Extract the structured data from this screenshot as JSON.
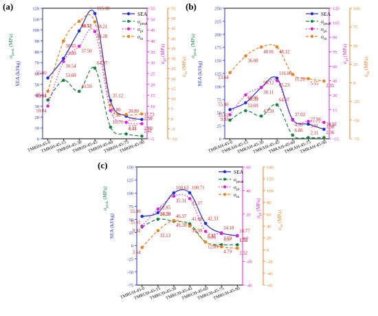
{
  "figure": {
    "panel_labels": [
      "(a)",
      "(b)",
      "(c)"
    ]
  },
  "legend": {
    "sea": "SEA",
    "peak": "σ",
    "peak_sub": "peak",
    "pl": "σ",
    "pl_sub": "pl",
    "m": "σ",
    "m_sub": "m"
  },
  "colors": {
    "sea": "#1f2bd6",
    "peak": "#12803a",
    "pl": "#e11be0",
    "m": "#f07f1b",
    "value_label": "#d41c1c",
    "frame": "#000000"
  },
  "chart_data": [
    {
      "type": "line",
      "panel": "(a)",
      "categories": [
        "TMRIH-45-0",
        "TMRIH-45-15",
        "TMRIH-45-30",
        "TMRIH-45-45",
        "TMRIH-45-60",
        "TMRIH-45-75",
        "TMRIH-45-90"
      ],
      "category_label_style": "diagonal",
      "axes": {
        "sea": {
          "label": "SEA (kJ/kg)",
          "ylim": [
            0,
            120
          ],
          "ticks": [
            0,
            10,
            20,
            30,
            40,
            50,
            60,
            70,
            80,
            90,
            100,
            110,
            120
          ]
        },
        "peak": {
          "label": "σ",
          "sub": "peak",
          "unit": "(MPa)",
          "ylim": [
            0,
            120
          ],
          "ticks": []
        },
        "pl": {
          "label": "σ",
          "sub": "pl",
          "unit": "(MPa)",
          "ylim": [
            -5,
            55
          ],
          "ticks": [
            -5,
            0,
            5,
            10,
            15,
            20,
            25,
            30,
            35,
            40,
            45,
            50,
            55
          ]
        },
        "m": {
          "label": "σ",
          "sub": "m",
          "unit": "(MPa)",
          "ylim": [
            -10,
            55
          ],
          "ticks": [
            -10,
            -5,
            0,
            5,
            10,
            15,
            20,
            25,
            30,
            35,
            40,
            45,
            50,
            55
          ]
        }
      },
      "series": [
        {
          "name": "SEA",
          "key": "sea",
          "curve": "smooth",
          "values": [
            55.9,
            73.89,
            99.12,
            115.18,
            35.12,
            20.8,
            17.73
          ]
        },
        {
          "name": "σpeak",
          "key": "peak",
          "curve": "smooth-dashed",
          "values": [
            35.61,
            53.69,
            43.59,
            64.97,
            10.71,
            4.44,
            2.41
          ]
        },
        {
          "name": "σpl",
          "key": "pl",
          "curve": "dotted",
          "values": [
            10.04,
            30.54,
            37.5,
            44.28,
            7.96,
            2.57,
            1.91
          ]
        },
        {
          "name": "σm",
          "key": "m",
          "curve": "dashed",
          "values": [
            13.64,
            38.65,
            48.51,
            48.21,
            6.8,
            2.11,
            2.36
          ]
        }
      ],
      "value_labels": [
        "55.90",
        "73.89",
        "99.12",
        "115.18",
        "35.12",
        "20.80",
        "17.73",
        "35.61",
        "53.69",
        "43.59",
        "64.97",
        "10.71",
        "4.44",
        "2.41",
        "10.04",
        "30.54",
        "37.50",
        "44.28",
        "7.96",
        "2.57",
        "1.91",
        "13.64",
        "38.65",
        "48.51",
        "48.21",
        "6.80",
        "2.11",
        "2.36"
      ]
    },
    {
      "type": "line",
      "panel": "(b)",
      "categories": [
        "TMRAH-45-0",
        "TMRAH-45-15",
        "TMRAH-45-30",
        "TMRAH-45-45",
        "TMRAH-45-60",
        "TMRAH-45-75",
        "TMRAH-45-90"
      ],
      "category_label_style": "diagonal",
      "axes": {
        "sea": {
          "label": "SEA (kJ/kg)",
          "ylim": [
            0,
            250
          ],
          "ticks": [
            0,
            25,
            50,
            75,
            100,
            125,
            150,
            175,
            200,
            225,
            250
          ]
        },
        "peak": {
          "label": "σ",
          "sub": "peak",
          "unit": "(MPa)",
          "ylim": [
            0,
            250
          ],
          "ticks": []
        },
        "pl": {
          "label": "σ",
          "sub": "pl",
          "unit": "(MPa)",
          "ylim": [
            -15,
            120
          ],
          "ticks": [
            -15,
            0,
            15,
            30,
            45,
            60,
            75,
            90,
            105,
            120
          ]
        },
        "m": {
          "label": "σ",
          "sub": "m",
          "unit": "(MPa)",
          "ylim": [
            -75,
            100
          ],
          "ticks": [
            -75,
            -50,
            -25,
            0,
            25,
            50,
            75,
            100
          ]
        }
      },
      "series": [
        {
          "name": "SEA",
          "key": "sea",
          "curve": "smooth",
          "values": [
            55.9,
            69.06,
            98.12,
            116.06,
            37.02,
            27.96,
            18.12
          ]
        },
        {
          "name": "σpeak",
          "key": "peak",
          "curve": "smooth-dashed",
          "values": [
            35.61,
            53.69,
            43.59,
            64.97,
            6.86,
            2.11,
            2.36
          ]
        },
        {
          "name": "σpl",
          "key": "pl",
          "curve": "dotted",
          "values": [
            9.93,
            30.39,
            38.11,
            45.23,
            4.33,
            3.01,
            1.9
          ]
        },
        {
          "name": "σm",
          "key": "m",
          "curve": "dashed",
          "values": [
            13.64,
            36.08,
            48.01,
            48.12,
            11.28,
            5.55,
            2.35
          ]
        }
      ],
      "value_labels": [
        "55.90",
        "69.06",
        "98.12",
        "116.06",
        "37.02",
        "27.96",
        "18.12",
        "35.61",
        "53.69",
        "43.59",
        "64.97",
        "6.86",
        "2.11",
        "2.36",
        "9.93",
        "30.39",
        "38.11",
        "45.23",
        "4.33",
        "3.01",
        "1.90",
        "13.64",
        "36.08",
        "48.01",
        "48.12",
        "11.28",
        "5.55",
        "2.35"
      ]
    },
    {
      "type": "line",
      "panel": "(c)",
      "categories": [
        "TMRUH-45-0",
        "TMRUH-45-15",
        "TMRUH-45-30",
        "TMRUH-45-45",
        "TMRUH-45-60",
        "TMRUH-45-75",
        "TMRUH-45-90"
      ],
      "category_label_style": "diagonal",
      "axes": {
        "sea": {
          "label": "SEA (kJ/kg)",
          "ylim": [
            -75,
            150
          ],
          "ticks": [
            -75,
            -50,
            -25,
            0,
            25,
            50,
            75,
            100,
            125,
            150
          ]
        },
        "peak": {
          "label": "σ",
          "sub": "peak",
          "unit": "(MPa)",
          "ylim": [
            -75,
            150
          ],
          "ticks": []
        },
        "pl": {
          "label": "σ",
          "sub": "pl",
          "unit": "(MPa)",
          "ylim": [
            -40,
            60
          ],
          "ticks": [
            -40,
            -20,
            0,
            20,
            40,
            60
          ]
        },
        "m": {
          "label": "σ",
          "sub": "m",
          "unit": "(MPa)",
          "ylim": [
            -60,
            140
          ],
          "ticks": [
            -60,
            -40,
            -20,
            0,
            20,
            40,
            60,
            80,
            100,
            120,
            140
          ]
        }
      },
      "series": [
        {
          "name": "SEA",
          "key": "sea",
          "curve": "smooth",
          "values": [
            55.9,
            62.85,
            100.63,
            100.71,
            42.33,
            24.18,
            18.77
          ]
        },
        {
          "name": "σpeak",
          "key": "peak",
          "curve": "smooth-dashed",
          "values": [
            35.61,
            50.5,
            46.37,
            41.68,
            6.86,
            1.97,
            1.72
          ]
        },
        {
          "name": "σpl",
          "key": "pl",
          "curve": "dotted",
          "values": [
            9.92,
            24.3,
            35.31,
            33.17,
            5.47,
            3.63,
            1.95
          ]
        },
        {
          "name": "σm",
          "key": "m",
          "curve": "dashed",
          "values": [
            3.64,
            32.13,
            49.26,
            39.99,
            12.89,
            4.79,
            2.32
          ]
        }
      ],
      "value_labels": [
        "55.90",
        "62.85",
        "100.63",
        "100.71",
        "42.33",
        "24.18",
        "18.77",
        "35.61",
        "50.50",
        "46.37",
        "41.68",
        "6.86",
        "1.97",
        "1.72",
        "9.92",
        "24.30",
        "35.31",
        "33.17",
        "5.47",
        "3.63",
        "1.95",
        "3.64",
        "32.13",
        "49.26",
        "39.99",
        "12.89",
        "4.79",
        "2.32"
      ]
    }
  ]
}
